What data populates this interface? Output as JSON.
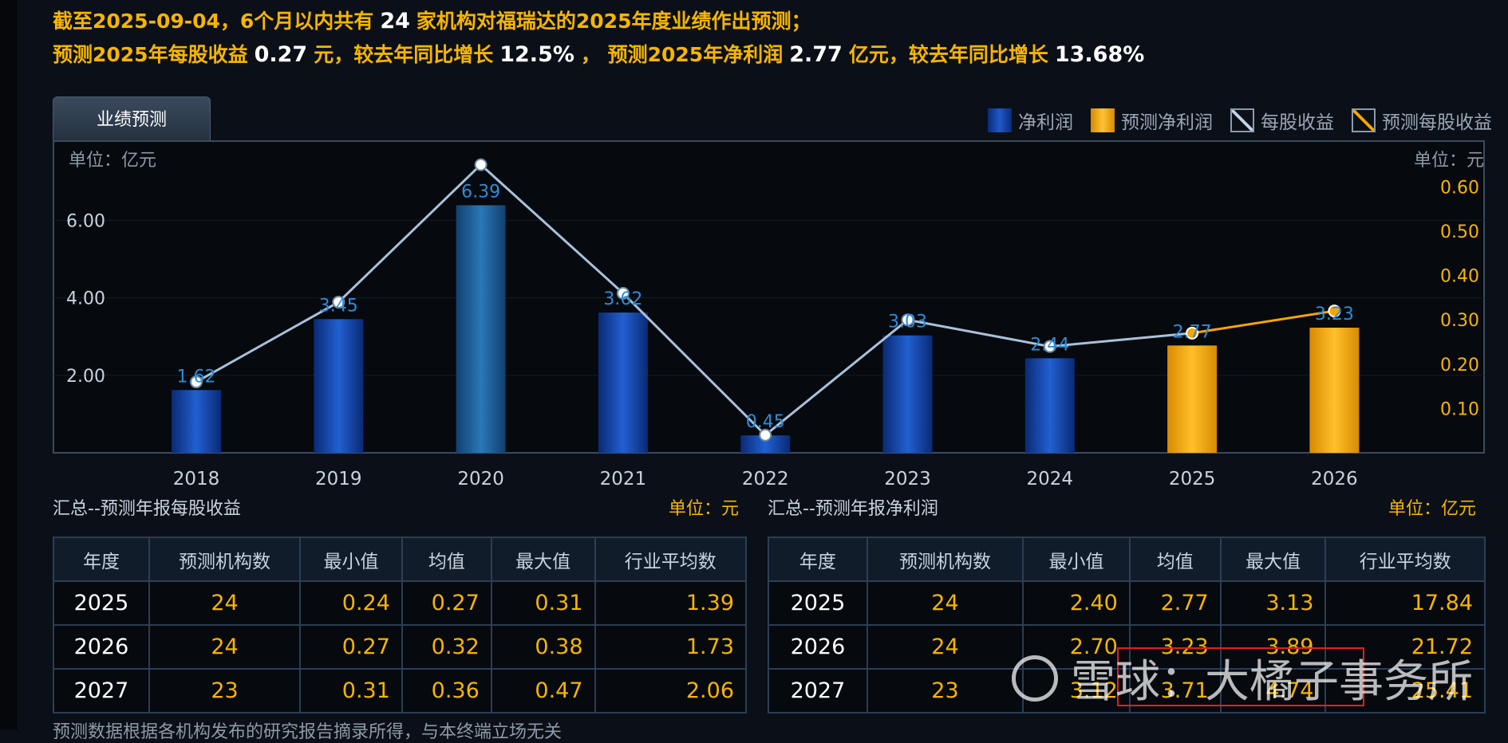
{
  "header": {
    "l1_a": "截至2025-09-04，6个月以内共有",
    "l1_count": "24",
    "l1_b": "家机构对福瑞达的2025年度业绩作出预测；",
    "l2_a": "预测2025年每股收益",
    "l2_eps": "0.27",
    "l2_b": "元，较去年同比增长",
    "l2_eps_growth": "12.5%",
    "l2_c": "，  预测2025年净利润",
    "l2_np": "2.77",
    "l2_d": "亿元，较去年同比增长",
    "l2_np_growth": "13.68%"
  },
  "tab": {
    "label": "业绩预测"
  },
  "legend": {
    "net": "净利润",
    "fnet": "预测净利润",
    "eps": "每股收益",
    "feps": "预测每股收益"
  },
  "chart_data": {
    "type": "bar",
    "left_unit": "单位：亿元",
    "right_unit": "单位：元",
    "categories": [
      "2018",
      "2019",
      "2020",
      "2021",
      "2022",
      "2023",
      "2024",
      "2025",
      "2026"
    ],
    "left_ticks": [
      "2.00",
      "4.00",
      "6.00"
    ],
    "right_ticks": [
      "0.10",
      "0.20",
      "0.30",
      "0.40",
      "0.50",
      "0.60"
    ],
    "left_ylim": [
      0,
      7
    ],
    "right_ylim": [
      0,
      0.7
    ],
    "series": [
      {
        "name": "净利润",
        "values": [
          1.62,
          3.45,
          6.39,
          3.62,
          0.45,
          3.03,
          2.44,
          null,
          null
        ],
        "color": "#1a4fb8"
      },
      {
        "name": "预测净利润",
        "values": [
          null,
          null,
          null,
          null,
          null,
          null,
          null,
          2.77,
          3.23
        ],
        "color": "#f7a500"
      },
      {
        "name": "每股收益",
        "values": [
          0.16,
          0.34,
          0.65,
          0.36,
          0.04,
          0.3,
          0.24,
          0.27,
          null
        ],
        "color": "#a9c1da"
      },
      {
        "name": "预测每股收益",
        "values": [
          null,
          null,
          null,
          null,
          null,
          null,
          null,
          0.27,
          0.32
        ],
        "color": "#f7a500"
      }
    ],
    "bar_labels": [
      "1.62",
      "3.45",
      "6.39",
      "3.62",
      "0.45",
      "3.03",
      "2.44",
      "2.77",
      "3.23"
    ]
  },
  "eps_table": {
    "title": "汇总--预测年报每股收益",
    "unit": "单位：元",
    "headers": [
      "年度",
      "预测机构数",
      "最小值",
      "均值",
      "最大值",
      "行业平均数"
    ],
    "rows": [
      [
        "2025",
        "24",
        "0.24",
        "0.27",
        "0.31",
        "1.39"
      ],
      [
        "2026",
        "24",
        "0.27",
        "0.32",
        "0.38",
        "1.73"
      ],
      [
        "2027",
        "23",
        "0.31",
        "0.36",
        "0.47",
        "2.06"
      ]
    ]
  },
  "np_table": {
    "title": "汇总--预测年报净利润",
    "unit": "单位：亿元",
    "headers": [
      "年度",
      "预测机构数",
      "最小值",
      "均值",
      "最大值",
      "行业平均数"
    ],
    "rows": [
      [
        "2025",
        "24",
        "2.40",
        "2.77",
        "3.13",
        "17.84"
      ],
      [
        "2026",
        "24",
        "2.70",
        "3.23",
        "3.89",
        "21.72"
      ],
      [
        "2027",
        "23",
        "3.12",
        "3.71",
        "4.74",
        "25.41"
      ]
    ]
  },
  "footer": "预测数据根据各机构发布的研究报告摘录所得，与本终端立场无关",
  "watermark": "雪球：大橘子事务所"
}
